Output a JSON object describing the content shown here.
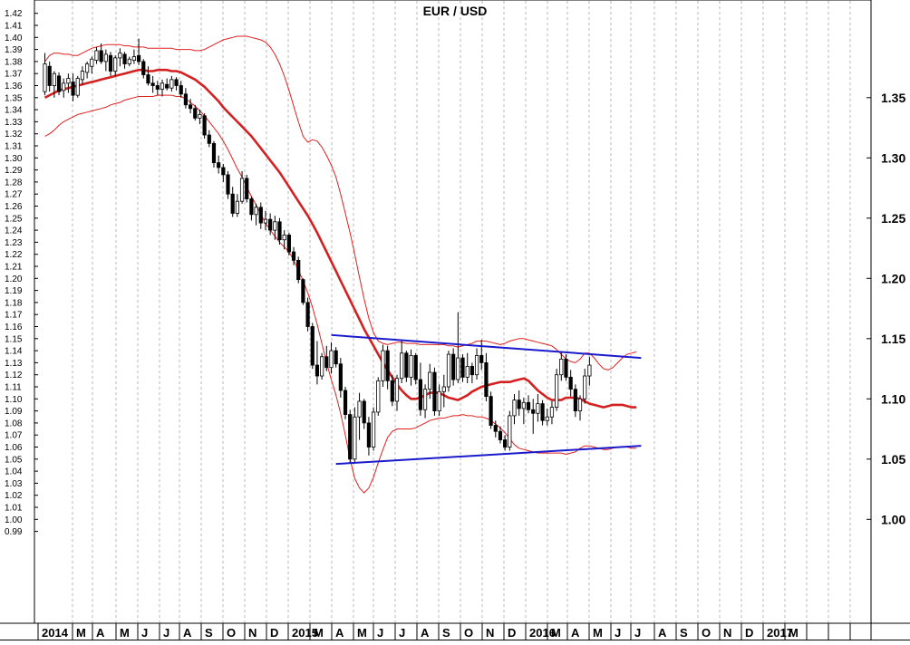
{
  "chart_data": {
    "type": "candlestick",
    "title": "EUR / USD",
    "x_tick_labels": [
      "2014",
      "M",
      "A",
      "M",
      "J",
      "J",
      "A",
      "S",
      "O",
      "N",
      "D",
      "2015",
      "M",
      "A",
      "M",
      "J",
      "J",
      "A",
      "S",
      "O",
      "N",
      "D",
      "2016",
      "M",
      "A",
      "M",
      "J",
      "J",
      "A",
      "S",
      "O",
      "N",
      "D",
      "2017",
      "M"
    ],
    "left_axis": {
      "ylim": [
        0.99,
        1.42
      ],
      "step": 0.01
    },
    "right_axis": {
      "ticks": [
        "1.35",
        "1.30",
        "1.25",
        "1.20",
        "1.15",
        "1.10",
        "1.05",
        "1.00"
      ]
    },
    "grid": "vertical dashed",
    "colors": {
      "up": "#ffffff",
      "down": "#000000",
      "wick": "#000000",
      "moving_average": "#d42020",
      "bollinger": "#e02020",
      "trendline": "#1a1acc"
    },
    "candles": [
      {
        "o": 1.355,
        "h": 1.387,
        "l": 1.352,
        "c": 1.378
      },
      {
        "o": 1.376,
        "h": 1.38,
        "l": 1.355,
        "c": 1.36
      },
      {
        "o": 1.36,
        "h": 1.372,
        "l": 1.35,
        "c": 1.37
      },
      {
        "o": 1.368,
        "h": 1.371,
        "l": 1.352,
        "c": 1.355
      },
      {
        "o": 1.356,
        "h": 1.366,
        "l": 1.35,
        "c": 1.362
      },
      {
        "o": 1.362,
        "h": 1.37,
        "l": 1.354,
        "c": 1.366
      },
      {
        "o": 1.363,
        "h": 1.37,
        "l": 1.347,
        "c": 1.352
      },
      {
        "o": 1.352,
        "h": 1.368,
        "l": 1.35,
        "c": 1.366
      },
      {
        "o": 1.365,
        "h": 1.376,
        "l": 1.361,
        "c": 1.372
      },
      {
        "o": 1.371,
        "h": 1.38,
        "l": 1.366,
        "c": 1.378
      },
      {
        "o": 1.376,
        "h": 1.384,
        "l": 1.37,
        "c": 1.382
      },
      {
        "o": 1.381,
        "h": 1.392,
        "l": 1.378,
        "c": 1.389
      },
      {
        "o": 1.389,
        "h": 1.395,
        "l": 1.378,
        "c": 1.38
      },
      {
        "o": 1.38,
        "h": 1.39,
        "l": 1.372,
        "c": 1.386
      },
      {
        "o": 1.385,
        "h": 1.388,
        "l": 1.368,
        "c": 1.372
      },
      {
        "o": 1.372,
        "h": 1.385,
        "l": 1.368,
        "c": 1.383
      },
      {
        "o": 1.383,
        "h": 1.391,
        "l": 1.376,
        "c": 1.387
      },
      {
        "o": 1.386,
        "h": 1.388,
        "l": 1.374,
        "c": 1.378
      },
      {
        "o": 1.378,
        "h": 1.384,
        "l": 1.376,
        "c": 1.382
      },
      {
        "o": 1.381,
        "h": 1.39,
        "l": 1.378,
        "c": 1.384
      },
      {
        "o": 1.385,
        "h": 1.399,
        "l": 1.377,
        "c": 1.38
      },
      {
        "o": 1.38,
        "h": 1.382,
        "l": 1.366,
        "c": 1.369
      },
      {
        "o": 1.369,
        "h": 1.376,
        "l": 1.36,
        "c": 1.362
      },
      {
        "o": 1.362,
        "h": 1.368,
        "l": 1.354,
        "c": 1.36
      },
      {
        "o": 1.36,
        "h": 1.364,
        "l": 1.352,
        "c": 1.357
      },
      {
        "o": 1.357,
        "h": 1.365,
        "l": 1.351,
        "c": 1.362
      },
      {
        "o": 1.361,
        "h": 1.366,
        "l": 1.356,
        "c": 1.358
      },
      {
        "o": 1.358,
        "h": 1.368,
        "l": 1.355,
        "c": 1.365
      },
      {
        "o": 1.365,
        "h": 1.367,
        "l": 1.356,
        "c": 1.36
      },
      {
        "o": 1.36,
        "h": 1.364,
        "l": 1.35,
        "c": 1.353
      },
      {
        "o": 1.353,
        "h": 1.358,
        "l": 1.341,
        "c": 1.344
      },
      {
        "o": 1.344,
        "h": 1.349,
        "l": 1.337,
        "c": 1.341
      },
      {
        "o": 1.341,
        "h": 1.344,
        "l": 1.331,
        "c": 1.333
      },
      {
        "o": 1.333,
        "h": 1.34,
        "l": 1.328,
        "c": 1.336
      },
      {
        "o": 1.335,
        "h": 1.337,
        "l": 1.316,
        "c": 1.319
      },
      {
        "o": 1.319,
        "h": 1.323,
        "l": 1.309,
        "c": 1.312
      },
      {
        "o": 1.312,
        "h": 1.314,
        "l": 1.292,
        "c": 1.296
      },
      {
        "o": 1.296,
        "h": 1.302,
        "l": 1.287,
        "c": 1.292
      },
      {
        "o": 1.292,
        "h": 1.295,
        "l": 1.28,
        "c": 1.286
      },
      {
        "o": 1.286,
        "h": 1.289,
        "l": 1.266,
        "c": 1.27
      },
      {
        "o": 1.27,
        "h": 1.276,
        "l": 1.251,
        "c": 1.254
      },
      {
        "o": 1.254,
        "h": 1.27,
        "l": 1.251,
        "c": 1.264
      },
      {
        "o": 1.264,
        "h": 1.289,
        "l": 1.262,
        "c": 1.283
      },
      {
        "o": 1.283,
        "h": 1.286,
        "l": 1.263,
        "c": 1.266
      },
      {
        "o": 1.266,
        "h": 1.268,
        "l": 1.248,
        "c": 1.253
      },
      {
        "o": 1.253,
        "h": 1.262,
        "l": 1.244,
        "c": 1.259
      },
      {
        "o": 1.259,
        "h": 1.263,
        "l": 1.241,
        "c": 1.246
      },
      {
        "o": 1.246,
        "h": 1.256,
        "l": 1.24,
        "c": 1.249
      },
      {
        "o": 1.249,
        "h": 1.254,
        "l": 1.236,
        "c": 1.24
      },
      {
        "o": 1.24,
        "h": 1.252,
        "l": 1.232,
        "c": 1.247
      },
      {
        "o": 1.247,
        "h": 1.25,
        "l": 1.228,
        "c": 1.232
      },
      {
        "o": 1.232,
        "h": 1.24,
        "l": 1.224,
        "c": 1.236
      },
      {
        "o": 1.236,
        "h": 1.238,
        "l": 1.219,
        "c": 1.222
      },
      {
        "o": 1.222,
        "h": 1.226,
        "l": 1.211,
        "c": 1.215
      },
      {
        "o": 1.215,
        "h": 1.218,
        "l": 1.196,
        "c": 1.199
      },
      {
        "o": 1.199,
        "h": 1.2,
        "l": 1.178,
        "c": 1.18
      },
      {
        "o": 1.18,
        "h": 1.184,
        "l": 1.156,
        "c": 1.16
      },
      {
        "o": 1.16,
        "h": 1.163,
        "l": 1.125,
        "c": 1.128
      },
      {
        "o": 1.128,
        "h": 1.148,
        "l": 1.112,
        "c": 1.119
      },
      {
        "o": 1.119,
        "h": 1.138,
        "l": 1.116,
        "c": 1.135
      },
      {
        "o": 1.135,
        "h": 1.144,
        "l": 1.123,
        "c": 1.126
      },
      {
        "o": 1.126,
        "h": 1.147,
        "l": 1.121,
        "c": 1.14
      },
      {
        "o": 1.14,
        "h": 1.143,
        "l": 1.126,
        "c": 1.129
      },
      {
        "o": 1.129,
        "h": 1.134,
        "l": 1.101,
        "c": 1.107
      },
      {
        "o": 1.107,
        "h": 1.11,
        "l": 1.083,
        "c": 1.087
      },
      {
        "o": 1.087,
        "h": 1.091,
        "l": 1.047,
        "c": 1.05
      },
      {
        "o": 1.05,
        "h": 1.093,
        "l": 1.047,
        "c": 1.085
      },
      {
        "o": 1.085,
        "h": 1.105,
        "l": 1.066,
        "c": 1.098
      },
      {
        "o": 1.098,
        "h": 1.1,
        "l": 1.075,
        "c": 1.08
      },
      {
        "o": 1.08,
        "h": 1.085,
        "l": 1.053,
        "c": 1.06
      },
      {
        "o": 1.06,
        "h": 1.093,
        "l": 1.057,
        "c": 1.089
      },
      {
        "o": 1.089,
        "h": 1.118,
        "l": 1.086,
        "c": 1.115
      },
      {
        "o": 1.115,
        "h": 1.145,
        "l": 1.11,
        "c": 1.14
      },
      {
        "o": 1.14,
        "h": 1.144,
        "l": 1.108,
        "c": 1.115
      },
      {
        "o": 1.115,
        "h": 1.12,
        "l": 1.094,
        "c": 1.098
      },
      {
        "o": 1.098,
        "h": 1.12,
        "l": 1.09,
        "c": 1.117
      },
      {
        "o": 1.117,
        "h": 1.148,
        "l": 1.113,
        "c": 1.138
      },
      {
        "o": 1.138,
        "h": 1.14,
        "l": 1.114,
        "c": 1.118
      },
      {
        "o": 1.118,
        "h": 1.141,
        "l": 1.111,
        "c": 1.136
      },
      {
        "o": 1.136,
        "h": 1.138,
        "l": 1.112,
        "c": 1.116
      },
      {
        "o": 1.116,
        "h": 1.13,
        "l": 1.086,
        "c": 1.091
      },
      {
        "o": 1.091,
        "h": 1.112,
        "l": 1.084,
        "c": 1.108
      },
      {
        "o": 1.108,
        "h": 1.129,
        "l": 1.1,
        "c": 1.122
      },
      {
        "o": 1.122,
        "h": 1.126,
        "l": 1.086,
        "c": 1.09
      },
      {
        "o": 1.09,
        "h": 1.112,
        "l": 1.086,
        "c": 1.106
      },
      {
        "o": 1.106,
        "h": 1.12,
        "l": 1.093,
        "c": 1.11
      },
      {
        "o": 1.11,
        "h": 1.14,
        "l": 1.106,
        "c": 1.137
      },
      {
        "o": 1.137,
        "h": 1.142,
        "l": 1.111,
        "c": 1.116
      },
      {
        "o": 1.116,
        "h": 1.172,
        "l": 1.113,
        "c": 1.134
      },
      {
        "o": 1.134,
        "h": 1.137,
        "l": 1.114,
        "c": 1.118
      },
      {
        "o": 1.118,
        "h": 1.138,
        "l": 1.113,
        "c": 1.127
      },
      {
        "o": 1.127,
        "h": 1.13,
        "l": 1.113,
        "c": 1.12
      },
      {
        "o": 1.12,
        "h": 1.142,
        "l": 1.116,
        "c": 1.136
      },
      {
        "o": 1.136,
        "h": 1.149,
        "l": 1.124,
        "c": 1.13
      },
      {
        "o": 1.13,
        "h": 1.138,
        "l": 1.098,
        "c": 1.102
      },
      {
        "o": 1.102,
        "h": 1.106,
        "l": 1.075,
        "c": 1.078
      },
      {
        "o": 1.078,
        "h": 1.082,
        "l": 1.068,
        "c": 1.073
      },
      {
        "o": 1.073,
        "h": 1.077,
        "l": 1.063,
        "c": 1.066
      },
      {
        "o": 1.066,
        "h": 1.07,
        "l": 1.057,
        "c": 1.06
      },
      {
        "o": 1.06,
        "h": 1.09,
        "l": 1.057,
        "c": 1.086
      },
      {
        "o": 1.086,
        "h": 1.104,
        "l": 1.079,
        "c": 1.099
      },
      {
        "o": 1.099,
        "h": 1.107,
        "l": 1.086,
        "c": 1.092
      },
      {
        "o": 1.092,
        "h": 1.101,
        "l": 1.079,
        "c": 1.097
      },
      {
        "o": 1.097,
        "h": 1.103,
        "l": 1.088,
        "c": 1.091
      },
      {
        "o": 1.091,
        "h": 1.1,
        "l": 1.071,
        "c": 1.088
      },
      {
        "o": 1.088,
        "h": 1.104,
        "l": 1.081,
        "c": 1.096
      },
      {
        "o": 1.096,
        "h": 1.099,
        "l": 1.078,
        "c": 1.082
      },
      {
        "o": 1.082,
        "h": 1.092,
        "l": 1.078,
        "c": 1.085
      },
      {
        "o": 1.085,
        "h": 1.098,
        "l": 1.079,
        "c": 1.093
      },
      {
        "o": 1.093,
        "h": 1.125,
        "l": 1.09,
        "c": 1.12
      },
      {
        "o": 1.12,
        "h": 1.139,
        "l": 1.115,
        "c": 1.133
      },
      {
        "o": 1.133,
        "h": 1.137,
        "l": 1.115,
        "c": 1.118
      },
      {
        "o": 1.118,
        "h": 1.124,
        "l": 1.102,
        "c": 1.108
      },
      {
        "o": 1.108,
        "h": 1.112,
        "l": 1.085,
        "c": 1.09
      },
      {
        "o": 1.09,
        "h": 1.103,
        "l": 1.082,
        "c": 1.1
      },
      {
        "o": 1.1,
        "h": 1.125,
        "l": 1.096,
        "c": 1.119
      },
      {
        "o": 1.119,
        "h": 1.135,
        "l": 1.111,
        "c": 1.128
      }
    ],
    "moving_average": [
      1.35,
      1.352,
      1.354,
      1.356,
      1.357,
      1.358,
      1.359,
      1.36,
      1.361,
      1.362,
      1.363,
      1.364,
      1.365,
      1.366,
      1.367,
      1.368,
      1.369,
      1.37,
      1.371,
      1.372,
      1.373,
      1.373,
      1.372,
      1.372,
      1.373,
      1.373,
      1.373,
      1.372,
      1.372,
      1.371,
      1.369,
      1.367,
      1.365,
      1.362,
      1.359,
      1.355,
      1.351,
      1.347,
      1.342,
      1.338,
      1.334,
      1.33,
      1.326,
      1.322,
      1.318,
      1.313,
      1.308,
      1.303,
      1.298,
      1.293,
      1.288,
      1.282,
      1.276,
      1.27,
      1.264,
      1.258,
      1.252,
      1.245,
      1.238,
      1.23,
      1.222,
      1.214,
      1.206,
      1.198,
      1.19,
      1.182,
      1.174,
      1.166,
      1.158,
      1.151,
      1.144,
      1.137,
      1.13,
      1.124,
      1.118,
      1.112,
      1.107,
      1.103,
      1.1,
      1.1,
      1.101,
      1.103,
      1.105,
      1.105,
      1.105,
      1.103,
      1.101,
      1.1,
      1.099,
      1.101,
      1.103,
      1.106,
      1.108,
      1.11,
      1.111,
      1.112,
      1.113,
      1.114,
      1.114,
      1.114,
      1.115,
      1.116,
      1.117,
      1.115,
      1.111,
      1.107,
      1.104,
      1.101,
      1.099,
      1.099,
      1.099,
      1.101,
      1.101,
      1.101,
      1.1,
      1.098,
      1.096,
      1.095,
      1.094,
      1.093,
      1.094,
      1.095,
      1.095,
      1.095,
      1.094,
      1.093,
      1.093
    ],
    "bollinger_upper": [
      1.38,
      1.385,
      1.387,
      1.387,
      1.386,
      1.386,
      1.385,
      1.385,
      1.387,
      1.389,
      1.391,
      1.392,
      1.393,
      1.394,
      1.394,
      1.394,
      1.394,
      1.393,
      1.393,
      1.392,
      1.392,
      1.392,
      1.391,
      1.391,
      1.391,
      1.391,
      1.391,
      1.391,
      1.39,
      1.39,
      1.39,
      1.39,
      1.389,
      1.389,
      1.39,
      1.392,
      1.394,
      1.396,
      1.398,
      1.399,
      1.4,
      1.401,
      1.401,
      1.401,
      1.4,
      1.399,
      1.398,
      1.396,
      1.392,
      1.386,
      1.378,
      1.368,
      1.356,
      1.343,
      1.33,
      1.318,
      1.313,
      1.315,
      1.314,
      1.309,
      1.302,
      1.294,
      1.284,
      1.27,
      1.254,
      1.238,
      1.22,
      1.201,
      1.183,
      1.167,
      1.155,
      1.148,
      1.146,
      1.145,
      1.146,
      1.147,
      1.147,
      1.146,
      1.146,
      1.146,
      1.145,
      1.145,
      1.145,
      1.145,
      1.145,
      1.145,
      1.144,
      1.144,
      1.143,
      1.144,
      1.145,
      1.146,
      1.148,
      1.148,
      1.148,
      1.147,
      1.146,
      1.145,
      1.146,
      1.148,
      1.149,
      1.15,
      1.15,
      1.149,
      1.148,
      1.147,
      1.146,
      1.145,
      1.144,
      1.141,
      1.137,
      1.133,
      1.131,
      1.13,
      1.133,
      1.138,
      1.138,
      1.134,
      1.129,
      1.125,
      1.124,
      1.126,
      1.13,
      1.134,
      1.137,
      1.138,
      1.139
    ],
    "bollinger_lower": [
      1.318,
      1.32,
      1.323,
      1.327,
      1.33,
      1.332,
      1.334,
      1.336,
      1.337,
      1.338,
      1.339,
      1.34,
      1.341,
      1.342,
      1.344,
      1.345,
      1.346,
      1.348,
      1.349,
      1.35,
      1.351,
      1.351,
      1.351,
      1.351,
      1.352,
      1.352,
      1.352,
      1.352,
      1.351,
      1.351,
      1.349,
      1.346,
      1.343,
      1.339,
      1.335,
      1.33,
      1.325,
      1.32,
      1.314,
      1.307,
      1.299,
      1.291,
      1.284,
      1.276,
      1.268,
      1.261,
      1.253,
      1.246,
      1.24,
      1.235,
      1.23,
      1.226,
      1.222,
      1.215,
      1.207,
      1.198,
      1.188,
      1.176,
      1.162,
      1.146,
      1.13,
      1.116,
      1.103,
      1.088,
      1.07,
      1.05,
      1.034,
      1.026,
      1.022,
      1.026,
      1.035,
      1.047,
      1.058,
      1.068,
      1.073,
      1.075,
      1.075,
      1.075,
      1.075,
      1.076,
      1.078,
      1.08,
      1.082,
      1.083,
      1.084,
      1.084,
      1.085,
      1.086,
      1.086,
      1.087,
      1.086,
      1.086,
      1.085,
      1.085,
      1.084,
      1.082,
      1.079,
      1.076,
      1.072,
      1.067,
      1.062,
      1.059,
      1.058,
      1.057,
      1.056,
      1.055,
      1.055,
      1.055,
      1.055,
      1.055,
      1.055,
      1.054,
      1.055,
      1.056,
      1.059,
      1.061,
      1.061,
      1.06,
      1.059,
      1.058,
      1.058,
      1.059,
      1.06,
      1.06,
      1.06,
      1.059,
      1.059
    ],
    "trendlines": [
      {
        "start": {
          "date": "2015-03-06",
          "value": 1.153
        },
        "end": {
          "date": "2016-06-10",
          "value": 1.134
        }
      },
      {
        "start": {
          "date": "2015-03-13",
          "value": 1.046
        },
        "end": {
          "date": "2016-06-10",
          "value": 1.061
        }
      }
    ]
  }
}
